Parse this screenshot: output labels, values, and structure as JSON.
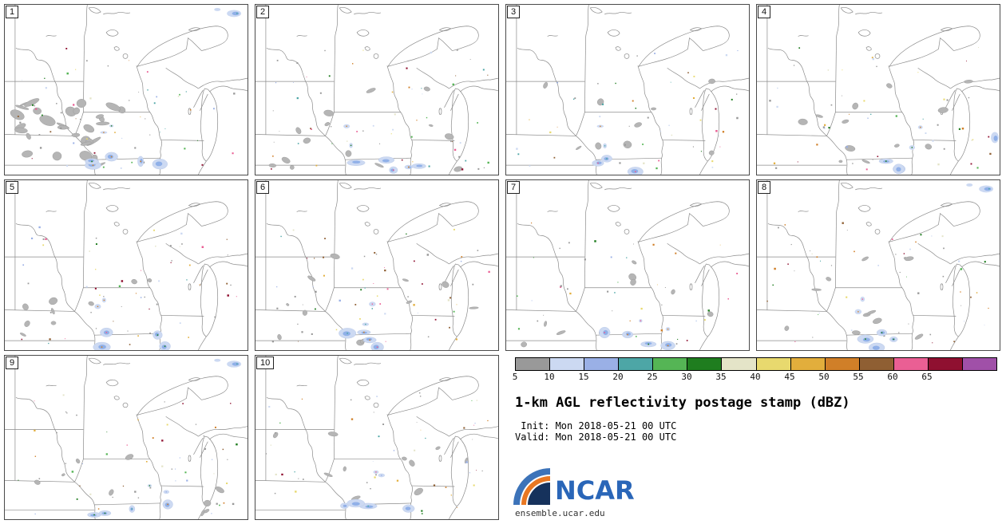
{
  "panels": [
    {
      "label": "1",
      "seed": 101,
      "gray_blobs": 30,
      "dots": 60,
      "blue_blobs": 5,
      "blob_bias": "sw",
      "corner_blob": "tr"
    },
    {
      "label": "2",
      "seed": 202,
      "gray_blobs": 14,
      "dots": 62,
      "blue_blobs": 5,
      "blob_bias": "",
      "corner_blob": ""
    },
    {
      "label": "3",
      "seed": 303,
      "gray_blobs": 9,
      "dots": 48,
      "blue_blobs": 3,
      "blob_bias": "",
      "corner_blob": ""
    },
    {
      "label": "4",
      "seed": 404,
      "gray_blobs": 12,
      "dots": 50,
      "blue_blobs": 3,
      "blob_bias": "",
      "corner_blob": "r"
    },
    {
      "label": "5",
      "seed": 505,
      "gray_blobs": 9,
      "dots": 58,
      "blue_blobs": 4,
      "blob_bias": "",
      "corner_blob": ""
    },
    {
      "label": "6",
      "seed": 606,
      "gray_blobs": 11,
      "dots": 60,
      "blue_blobs": 4,
      "blob_bias": "",
      "corner_blob": ""
    },
    {
      "label": "7",
      "seed": 707,
      "gray_blobs": 8,
      "dots": 42,
      "blue_blobs": 4,
      "blob_bias": "",
      "corner_blob": ""
    },
    {
      "label": "8",
      "seed": 808,
      "gray_blobs": 11,
      "dots": 52,
      "blue_blobs": 4,
      "blob_bias": "",
      "corner_blob": "tr"
    },
    {
      "label": "9",
      "seed": 909,
      "gray_blobs": 9,
      "dots": 56,
      "blue_blobs": 4,
      "blob_bias": "",
      "corner_blob": "tr"
    },
    {
      "label": "10",
      "seed": 1010,
      "gray_blobs": 10,
      "dots": 52,
      "blue_blobs": 4,
      "blob_bias": "",
      "corner_blob": ""
    }
  ],
  "colorbar": {
    "ticks": [
      "5",
      "10",
      "15",
      "20",
      "25",
      "30",
      "35",
      "40",
      "45",
      "50",
      "55",
      "60",
      "65"
    ],
    "colors": [
      "#999999",
      "#ccd9f2",
      "#9ab0e6",
      "#4da6a6",
      "#55b555",
      "#1f7d1f",
      "#e4e4c8",
      "#e8d96e",
      "#e2ae3c",
      "#d07f28",
      "#8f5f33",
      "#ea5f94",
      "#8f1030",
      "#a050a8"
    ]
  },
  "legend": {
    "title": "1-km AGL reflectivity postage stamp (dBZ)",
    "init_line": " Init: Mon 2018-05-21 00 UTC",
    "valid_line": "Valid: Mon 2018-05-21 00 UTC"
  },
  "logo": {
    "text": "NCAR",
    "url": "ensemble.ucar.edu"
  }
}
